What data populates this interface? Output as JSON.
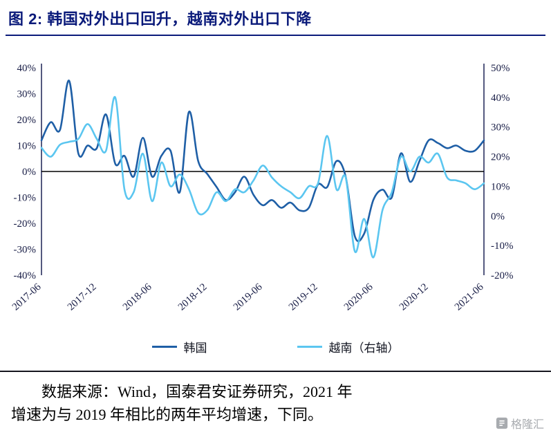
{
  "page": {
    "title": "图 2:  韩国对外出口回升，越南对外出口下降"
  },
  "legend": [
    {
      "label": "韩国",
      "color": "#1f5fa6"
    },
    {
      "label": "越南（右轴）",
      "color": "#5bc6f0"
    }
  ],
  "source": {
    "line1": "数据来源：Wind，国泰君安证券研究，2021 年",
    "line2": "增速为与 2019 年相比的两年平均增速，下同。"
  },
  "watermark": {
    "text": "格隆汇"
  },
  "chart_data": {
    "type": "line",
    "title": "",
    "grid": false,
    "legend_position": "bottom",
    "x": [
      "2017-06",
      "2017-07",
      "2017-08",
      "2017-09",
      "2017-10",
      "2017-11",
      "2017-12",
      "2018-01",
      "2018-02",
      "2018-03",
      "2018-04",
      "2018-05",
      "2018-06",
      "2018-07",
      "2018-08",
      "2018-09",
      "2018-10",
      "2018-11",
      "2018-12",
      "2019-01",
      "2019-02",
      "2019-03",
      "2019-04",
      "2019-05",
      "2019-06",
      "2019-07",
      "2019-08",
      "2019-09",
      "2019-10",
      "2019-11",
      "2019-12",
      "2020-01",
      "2020-02",
      "2020-03",
      "2020-04",
      "2020-05",
      "2020-06",
      "2020-07",
      "2020-08",
      "2020-09",
      "2020-10",
      "2020-11",
      "2020-12",
      "2021-01",
      "2021-02",
      "2021-03",
      "2021-04",
      "2021-05",
      "2021-06"
    ],
    "x_tick_labels": [
      "2017-06",
      "2017-12",
      "2018-06",
      "2018-12",
      "2019-06",
      "2019-12",
      "2020-06",
      "2020-12",
      "2021-06"
    ],
    "y_axis_left": {
      "labels": [
        "40%",
        "30%",
        "20%",
        "10%",
        "0%",
        "-10%",
        "-20%",
        "-30%",
        "-40%"
      ],
      "min": -40,
      "max": 40
    },
    "y_axis_right": {
      "labels": [
        "50%",
        "40%",
        "30%",
        "20%",
        "10%",
        "0%",
        "-10%",
        "-20%"
      ],
      "min": -20,
      "max": 50
    },
    "series": [
      {
        "name": "韩国",
        "axis": "left",
        "color": "#1f5fa6",
        "values": [
          12,
          19,
          16,
          35,
          7,
          10,
          9,
          22,
          3,
          6,
          -2,
          13,
          -2,
          6,
          8,
          -8,
          23,
          4,
          -1,
          -6,
          -11,
          -8,
          -2,
          -9,
          -13,
          -11,
          -14,
          -12,
          -15,
          -14,
          -5,
          -6,
          4,
          -2,
          -25,
          -24,
          -11,
          -7,
          -10,
          7,
          -4,
          4,
          12,
          11,
          9,
          10,
          8,
          8,
          12
        ]
      },
      {
        "name": "越南（右轴）",
        "axis": "right",
        "color": "#5bc6f0",
        "values": [
          23,
          20,
          24,
          25,
          26,
          31,
          26,
          22,
          40,
          9,
          8,
          21,
          5,
          18,
          10,
          14,
          9,
          1,
          2,
          8,
          5,
          9,
          8,
          12,
          17,
          13,
          10,
          8,
          6,
          10,
          11,
          27,
          9,
          13,
          -12,
          -1,
          -14,
          2,
          8,
          20,
          15,
          20,
          18,
          21,
          13,
          12,
          11,
          9,
          11
        ]
      }
    ]
  }
}
